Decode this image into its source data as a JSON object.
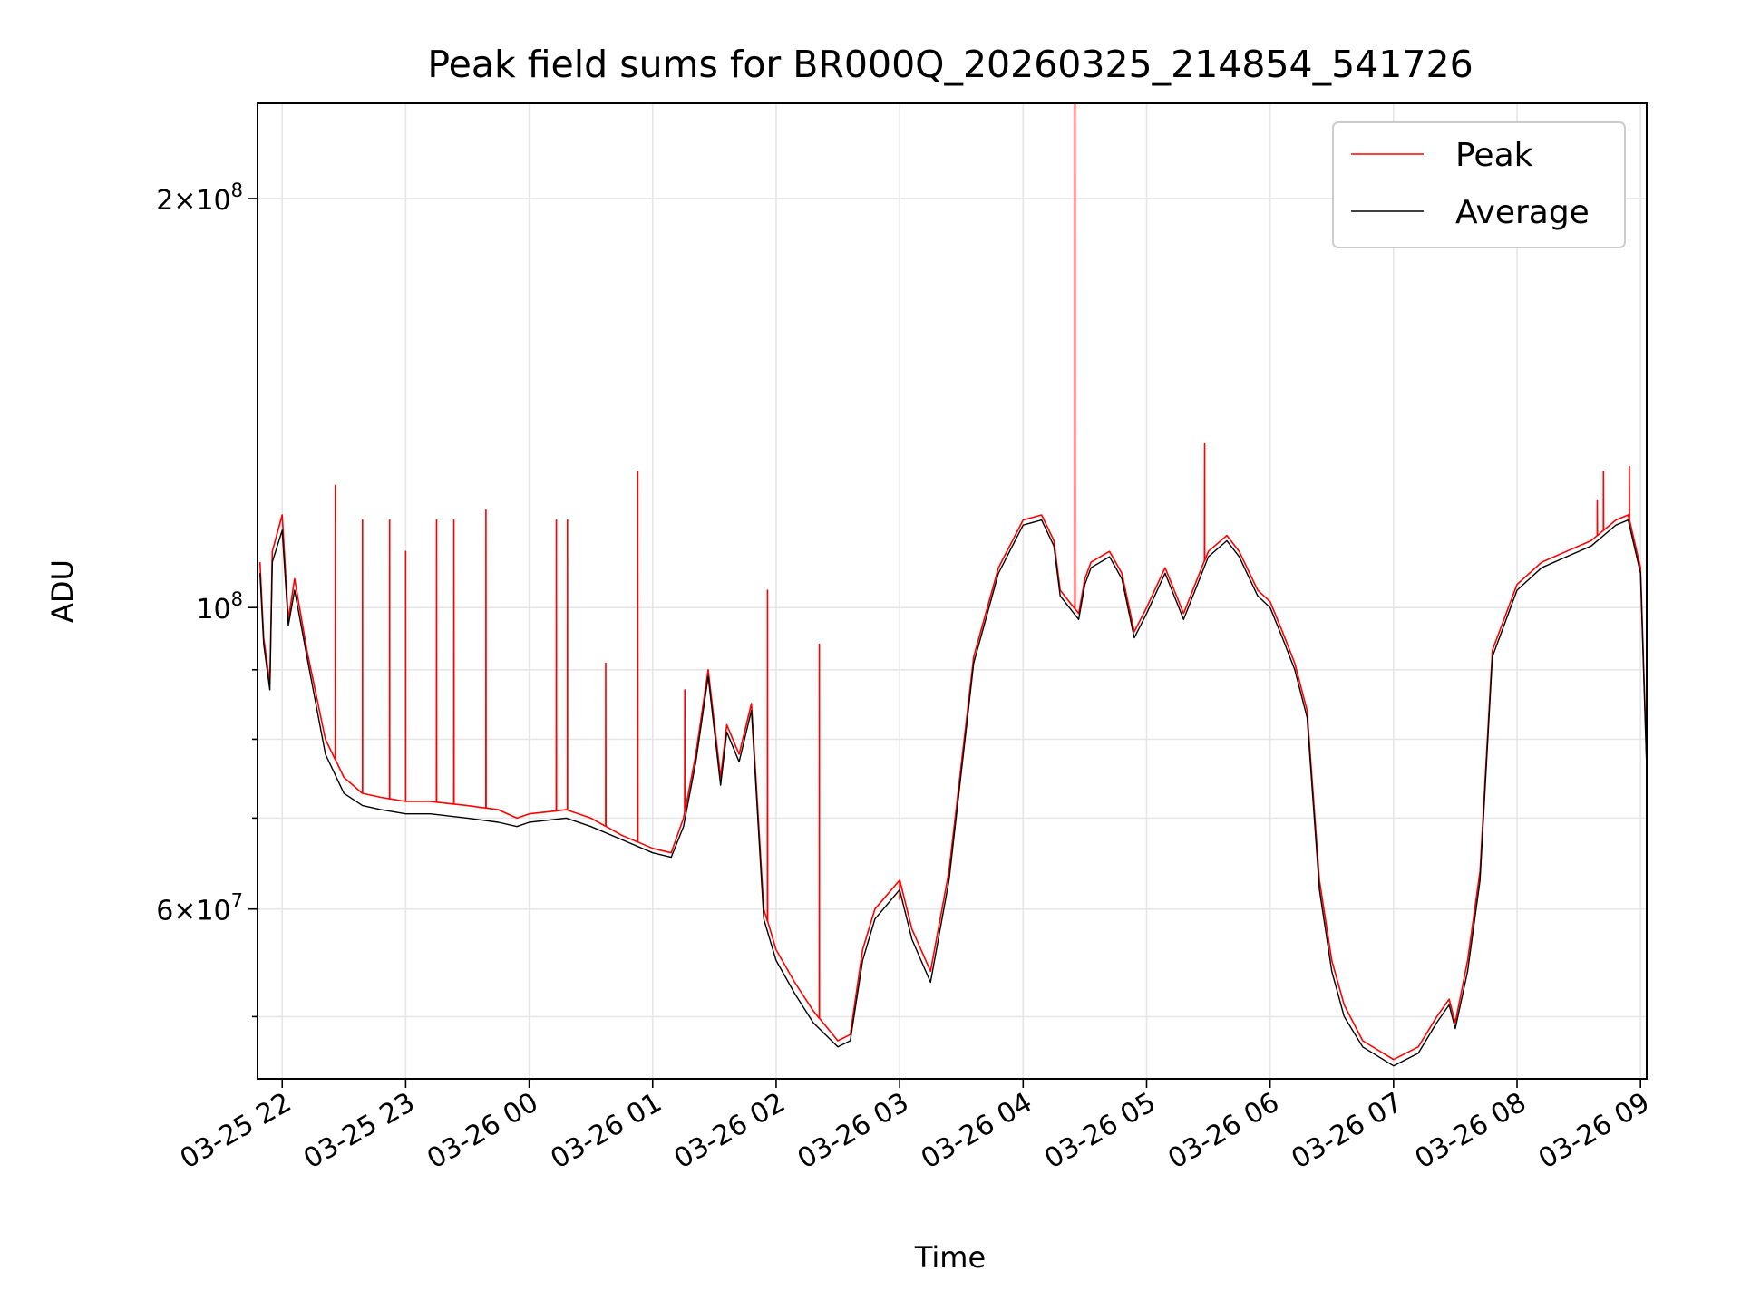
{
  "chart_data": {
    "type": "line",
    "title": "Peak field sums for BR000Q_20260325_214854_541726",
    "xlabel": "Time",
    "ylabel": "ADU",
    "yscale": "log",
    "ylim": [
      45000000,
      235000000
    ],
    "xlim_hours": [
      -0.2,
      11.05
    ],
    "grid": true,
    "legend_loc": "upper right",
    "x_ticks": [
      {
        "h": 0,
        "label": "03-25 22"
      },
      {
        "h": 1,
        "label": "03-25 23"
      },
      {
        "h": 2,
        "label": "03-26 00"
      },
      {
        "h": 3,
        "label": "03-26 01"
      },
      {
        "h": 4,
        "label": "03-26 02"
      },
      {
        "h": 5,
        "label": "03-26 03"
      },
      {
        "h": 6,
        "label": "03-26 04"
      },
      {
        "h": 7,
        "label": "03-26 05"
      },
      {
        "h": 8,
        "label": "03-26 06"
      },
      {
        "h": 9,
        "label": "03-26 07"
      },
      {
        "h": 10,
        "label": "03-26 08"
      },
      {
        "h": 11,
        "label": "03-26 09"
      }
    ],
    "y_major_ticks": [
      {
        "v": 60000000,
        "base": "6",
        "exp": "7"
      },
      {
        "v": 100000000,
        "base": "",
        "exp": "8"
      },
      {
        "v": 200000000,
        "base": "2",
        "exp": "8"
      }
    ],
    "y_minor_ticks": [
      50000000,
      70000000,
      80000000,
      90000000
    ],
    "hours_from_2200": [
      -0.18,
      -0.15,
      -0.1,
      -0.08,
      0.0,
      0.05,
      0.1,
      0.2,
      0.35,
      0.5,
      0.65,
      0.8,
      1.0,
      1.2,
      1.5,
      1.75,
      1.9,
      2.0,
      2.3,
      2.5,
      2.75,
      3.0,
      3.15,
      3.25,
      3.35,
      3.45,
      3.55,
      3.6,
      3.7,
      3.8,
      3.9,
      4.0,
      4.15,
      4.3,
      4.5,
      4.6,
      4.7,
      4.8,
      5.0,
      5.1,
      5.25,
      5.4,
      5.6,
      5.8,
      6.0,
      6.15,
      6.25,
      6.3,
      6.45,
      6.5,
      6.55,
      6.7,
      6.8,
      6.9,
      7.0,
      7.15,
      7.3,
      7.5,
      7.65,
      7.75,
      7.9,
      8.0,
      8.1,
      8.2,
      8.3,
      8.4,
      8.5,
      8.6,
      8.75,
      9.0,
      9.2,
      9.35,
      9.45,
      9.5,
      9.6,
      9.7,
      9.8,
      10.0,
      10.2,
      10.4,
      10.6,
      10.8,
      10.9,
      11.0,
      11.05
    ],
    "series": [
      {
        "name": "Peak",
        "color": "#ff0000",
        "values": [
          108000000,
          95000000,
          88000000,
          110000000,
          117000000,
          98000000,
          105000000,
          93000000,
          80000000,
          75000000,
          73000000,
          72500000,
          72000000,
          72000000,
          71500000,
          71000000,
          70000000,
          70500000,
          71000000,
          70000000,
          68000000,
          66500000,
          66000000,
          70000000,
          78000000,
          90000000,
          75000000,
          82000000,
          78000000,
          85000000,
          60000000,
          56000000,
          53000000,
          50500000,
          48000000,
          48500000,
          56000000,
          60000000,
          63000000,
          58000000,
          54000000,
          64000000,
          92000000,
          107000000,
          116000000,
          117000000,
          112000000,
          103000000,
          99000000,
          105000000,
          108000000,
          110000000,
          106000000,
          96000000,
          100000000,
          107000000,
          99000000,
          110000000,
          113000000,
          110000000,
          103000000,
          101000000,
          96000000,
          91000000,
          84000000,
          63000000,
          55000000,
          51000000,
          48000000,
          46500000,
          47500000,
          50000000,
          51500000,
          49500000,
          55000000,
          64000000,
          93000000,
          104000000,
          108000000,
          110000000,
          112000000,
          116000000,
          117000000,
          107000000,
          77000000
        ]
      },
      {
        "name": "Average",
        "color": "#000000",
        "values": [
          106000000,
          94000000,
          87000000,
          108000000,
          114000000,
          97000000,
          103000000,
          92000000,
          78000000,
          73000000,
          71500000,
          71000000,
          70500000,
          70500000,
          70000000,
          69500000,
          69000000,
          69500000,
          70000000,
          69000000,
          67500000,
          66000000,
          65500000,
          69000000,
          77000000,
          89000000,
          74000000,
          81000000,
          77000000,
          84000000,
          59000000,
          55000000,
          52000000,
          49500000,
          47500000,
          48000000,
          55000000,
          59000000,
          62000000,
          57000000,
          53000000,
          63000000,
          91000000,
          106000000,
          115000000,
          116000000,
          111000000,
          102000000,
          98000000,
          104000000,
          107000000,
          109000000,
          105000000,
          95000000,
          99000000,
          106000000,
          98000000,
          109000000,
          112000000,
          109000000,
          102000000,
          100000000,
          95000000,
          90000000,
          83000000,
          62000000,
          54000000,
          50000000,
          47500000,
          46000000,
          47000000,
          49500000,
          51000000,
          49000000,
          54000000,
          63000000,
          92000000,
          103000000,
          107000000,
          109000000,
          111000000,
          115000000,
          116000000,
          106000000,
          76000000
        ]
      }
    ],
    "peak_spikes": [
      {
        "h": 0.43,
        "v": 123000000
      },
      {
        "h": 0.65,
        "v": 116000000
      },
      {
        "h": 0.87,
        "v": 116000000
      },
      {
        "h": 1.0,
        "v": 110000000
      },
      {
        "h": 1.25,
        "v": 116000000
      },
      {
        "h": 1.39,
        "v": 116000000
      },
      {
        "h": 1.65,
        "v": 118000000
      },
      {
        "h": 2.22,
        "v": 116000000
      },
      {
        "h": 2.31,
        "v": 116000000
      },
      {
        "h": 2.62,
        "v": 91000000
      },
      {
        "h": 2.88,
        "v": 126000000
      },
      {
        "h": 3.26,
        "v": 87000000
      },
      {
        "h": 3.93,
        "v": 103000000
      },
      {
        "h": 4.35,
        "v": 94000000
      },
      {
        "h": 5.0,
        "v": 61000000
      },
      {
        "h": 6.42,
        "v": 235000000
      },
      {
        "h": 7.47,
        "v": 132000000
      },
      {
        "h": 10.65,
        "v": 120000000
      },
      {
        "h": 10.7,
        "v": 126000000
      },
      {
        "h": 10.91,
        "v": 127000000
      }
    ],
    "legend": [
      {
        "label": "Peak",
        "color": "#ff0000"
      },
      {
        "label": "Average",
        "color": "#000000"
      }
    ]
  }
}
